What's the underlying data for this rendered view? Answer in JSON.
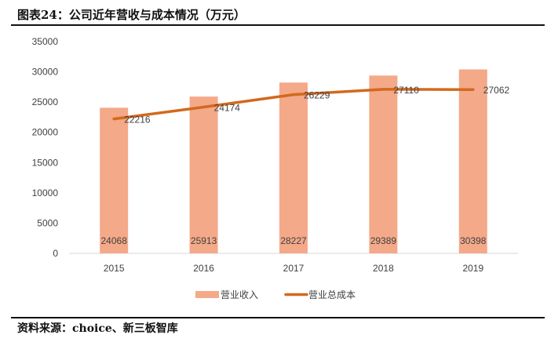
{
  "title": "图表24：公司近年营收与成本情况（万元）",
  "source": "资料来源：choice、新三板智库",
  "chart_data": {
    "type": "bar+line",
    "title": "",
    "categories": [
      "2015",
      "2016",
      "2017",
      "2018",
      "2019"
    ],
    "series": [
      {
        "name": "营业收入",
        "type": "bar",
        "color": "#F4A988",
        "values": [
          24068,
          25913,
          28227,
          29389,
          30398
        ]
      },
      {
        "name": "营业总成本",
        "type": "line",
        "color": "#D2691E",
        "values": [
          22216,
          24174,
          26229,
          27110,
          27062
        ]
      }
    ],
    "ylim": [
      0,
      35000
    ],
    "yticks": [
      0,
      5000,
      10000,
      15000,
      20000,
      25000,
      30000,
      35000
    ],
    "grid": false,
    "legend": "bottom",
    "xlabel": "",
    "ylabel": ""
  }
}
